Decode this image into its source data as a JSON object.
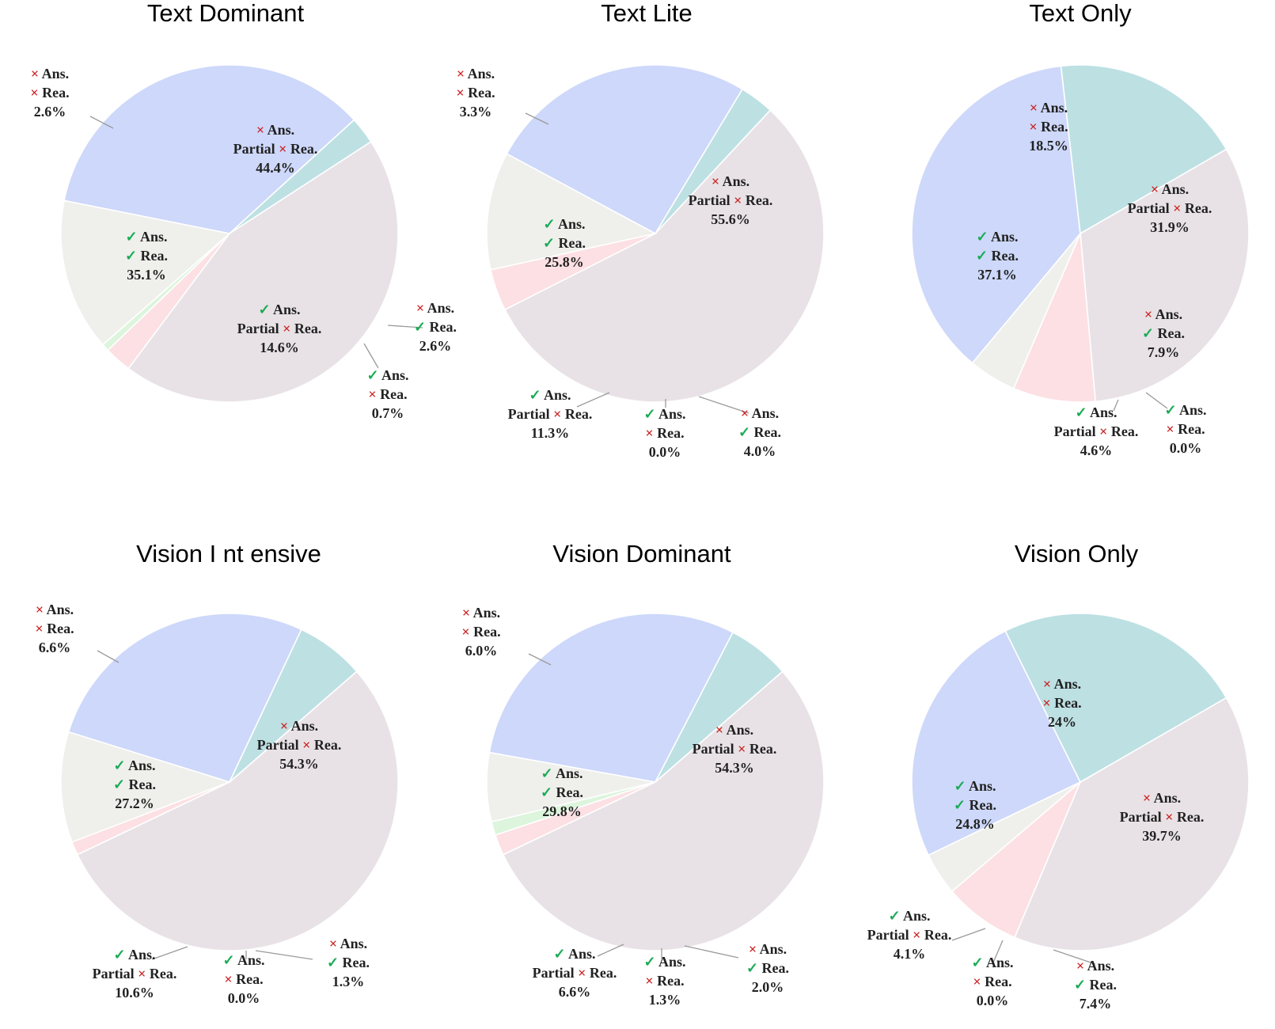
{
  "symbols": {
    "cross": "×",
    "check": "✓"
  },
  "words": {
    "ans": "Ans.",
    "rea": "Rea.",
    "partial": "Partial"
  },
  "category_colors": {
    "wrong_ans_wrong_rea": "#bde0e3",
    "wrong_ans_partial_rea": "#e8e2e6",
    "wrong_ans_right_rea": "#fce0e3",
    "right_ans_wrong_rea": "#dcf5dc",
    "right_ans_partial_rea": "#efefec",
    "right_ans_right_rea": "#cdd8fa"
  },
  "chart_data": [
    {
      "type": "pie",
      "title": "Text Dominant",
      "slices": [
        {
          "category": "wrong_ans_partial_rea",
          "value": 44.4,
          "label": "44.4%"
        },
        {
          "category": "wrong_ans_right_rea",
          "value": 2.6,
          "label": "2.6%"
        },
        {
          "category": "right_ans_wrong_rea",
          "value": 0.7,
          "label": "0.7%"
        },
        {
          "category": "right_ans_partial_rea",
          "value": 14.6,
          "label": "14.6%"
        },
        {
          "category": "right_ans_right_rea",
          "value": 35.1,
          "label": "35.1%"
        },
        {
          "category": "wrong_ans_wrong_rea",
          "value": 2.6,
          "label": "2.6%"
        }
      ]
    },
    {
      "type": "pie",
      "title": "Text Lite",
      "slices": [
        {
          "category": "wrong_ans_partial_rea",
          "value": 55.6,
          "label": "55.6%"
        },
        {
          "category": "wrong_ans_right_rea",
          "value": 4.0,
          "label": "4.0%"
        },
        {
          "category": "right_ans_wrong_rea",
          "value": 0.0,
          "label": "0.0%"
        },
        {
          "category": "right_ans_partial_rea",
          "value": 11.3,
          "label": "11.3%"
        },
        {
          "category": "right_ans_right_rea",
          "value": 25.8,
          "label": "25.8%"
        },
        {
          "category": "wrong_ans_wrong_rea",
          "value": 3.3,
          "label": "3.3%"
        }
      ]
    },
    {
      "type": "pie",
      "title": "Text Only",
      "slices": [
        {
          "category": "wrong_ans_partial_rea",
          "value": 31.9,
          "label": "31.9%"
        },
        {
          "category": "wrong_ans_right_rea",
          "value": 7.9,
          "label": "7.9%"
        },
        {
          "category": "right_ans_wrong_rea",
          "value": 0.0,
          "label": "0.0%"
        },
        {
          "category": "right_ans_partial_rea",
          "value": 4.6,
          "label": "4.6%"
        },
        {
          "category": "right_ans_right_rea",
          "value": 37.1,
          "label": "37.1%"
        },
        {
          "category": "wrong_ans_wrong_rea",
          "value": 18.5,
          "label": "18.5%"
        }
      ]
    },
    {
      "type": "pie",
      "title": "Vision I nt ensive",
      "slices": [
        {
          "category": "wrong_ans_partial_rea",
          "value": 54.3,
          "label": "54.3%"
        },
        {
          "category": "wrong_ans_right_rea",
          "value": 1.3,
          "label": "1.3%"
        },
        {
          "category": "right_ans_wrong_rea",
          "value": 0.0,
          "label": "0.0%"
        },
        {
          "category": "right_ans_partial_rea",
          "value": 10.6,
          "label": "10.6%"
        },
        {
          "category": "right_ans_right_rea",
          "value": 27.2,
          "label": "27.2%"
        },
        {
          "category": "wrong_ans_wrong_rea",
          "value": 6.6,
          "label": "6.6%"
        }
      ]
    },
    {
      "type": "pie",
      "title": "Vision Dominant",
      "slices": [
        {
          "category": "wrong_ans_partial_rea",
          "value": 54.3,
          "label": "54.3%"
        },
        {
          "category": "wrong_ans_right_rea",
          "value": 2.0,
          "label": "2.0%"
        },
        {
          "category": "right_ans_wrong_rea",
          "value": 1.3,
          "label": "1.3%"
        },
        {
          "category": "right_ans_partial_rea",
          "value": 6.6,
          "label": "6.6%"
        },
        {
          "category": "right_ans_right_rea",
          "value": 29.8,
          "label": "29.8%"
        },
        {
          "category": "wrong_ans_wrong_rea",
          "value": 6.0,
          "label": "6.0%"
        }
      ]
    },
    {
      "type": "pie",
      "title": "Vision Only",
      "slices": [
        {
          "category": "wrong_ans_partial_rea",
          "value": 39.7,
          "label": "39.7%"
        },
        {
          "category": "wrong_ans_right_rea",
          "value": 7.4,
          "label": "7.4%"
        },
        {
          "category": "right_ans_wrong_rea",
          "value": 0.0,
          "label": "0.0%"
        },
        {
          "category": "right_ans_partial_rea",
          "value": 4.1,
          "label": "4.1%"
        },
        {
          "category": "right_ans_right_rea",
          "value": 24.8,
          "label": "24.8%"
        },
        {
          "category": "wrong_ans_wrong_rea",
          "value": 24,
          "label": "24%"
        }
      ]
    }
  ]
}
